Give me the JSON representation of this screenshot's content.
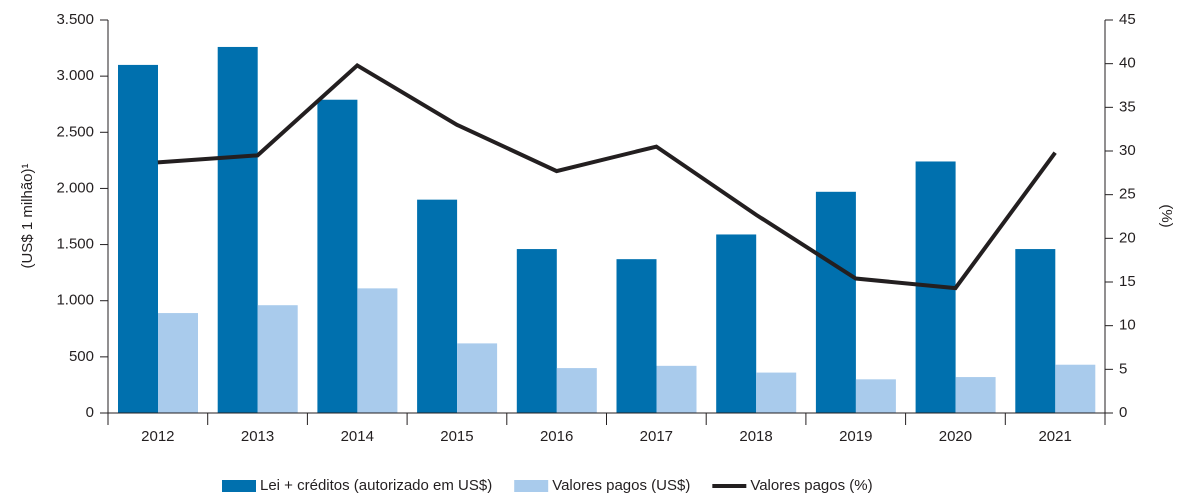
{
  "chart_data": {
    "type": "bar",
    "categories": [
      "2012",
      "2013",
      "2014",
      "2015",
      "2016",
      "2017",
      "2018",
      "2019",
      "2020",
      "2021"
    ],
    "series": [
      {
        "name": "Lei + créditos (autorizado em US$)",
        "color": "#0070ae",
        "values": [
          3100,
          3260,
          2790,
          1900,
          1460,
          1370,
          1590,
          1970,
          2240,
          1460
        ]
      },
      {
        "name": "Valores pagos (US$)",
        "color": "#a9cbec",
        "values": [
          890,
          960,
          1110,
          620,
          400,
          420,
          360,
          300,
          320,
          430
        ]
      },
      {
        "name": "Valores pagos (%)",
        "color": "#231f20",
        "type": "line",
        "axis": "y2",
        "values": [
          28.7,
          29.5,
          39.8,
          33,
          27.7,
          30.5,
          22.7,
          15.4,
          14.3,
          29.8
        ]
      }
    ],
    "ylabel": "(US$ 1 milhão)¹",
    "y2label": "(%)",
    "ylim": [
      0,
      3500
    ],
    "yticks": [
      0,
      500,
      {
        "value": 1000,
        "label": "1.000"
      },
      {
        "value": 1500,
        "label": "1.500"
      },
      {
        "value": 2000,
        "label": "2.000"
      },
      {
        "value": 2500,
        "label": "2.500"
      },
      {
        "value": 3000,
        "label": "3.000"
      },
      {
        "value": 3500,
        "label": "3.500"
      }
    ],
    "y2lim": [
      0,
      45
    ],
    "y2ticks": [
      0,
      5,
      10,
      15,
      20,
      25,
      30,
      35,
      40,
      45
    ],
    "legend": "bottom"
  }
}
